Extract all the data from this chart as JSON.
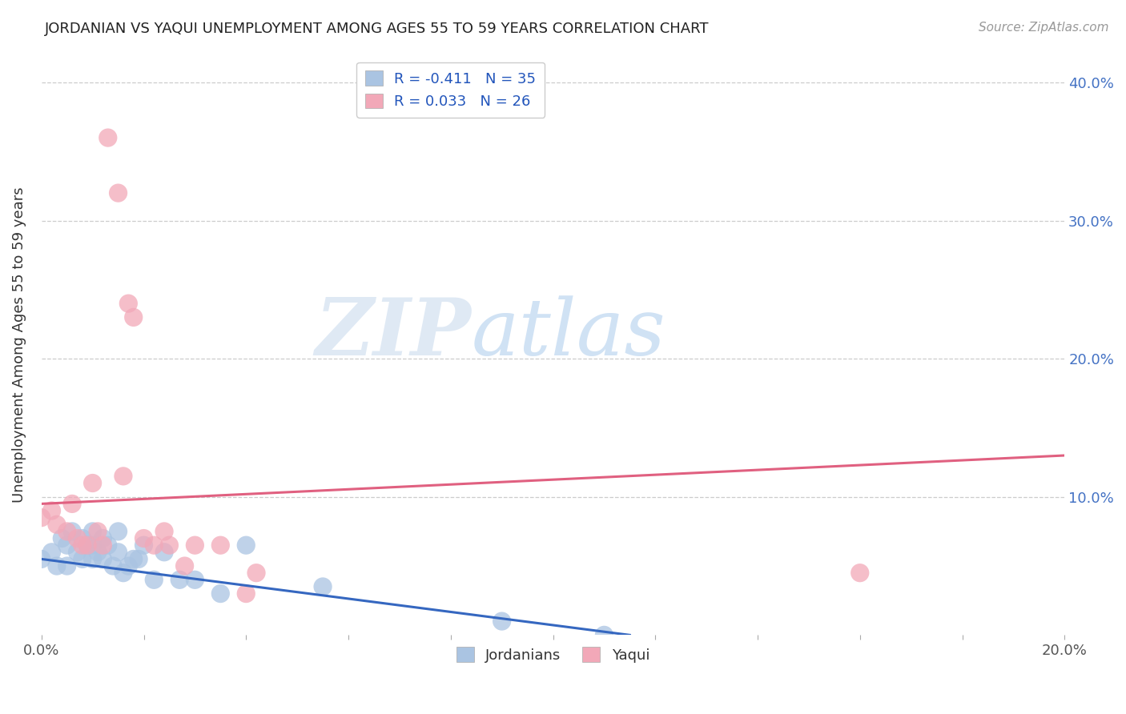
{
  "title": "JORDANIAN VS YAQUI UNEMPLOYMENT AMONG AGES 55 TO 59 YEARS CORRELATION CHART",
  "source": "Source: ZipAtlas.com",
  "ylabel": "Unemployment Among Ages 55 to 59 years",
  "xlim": [
    0.0,
    0.2
  ],
  "ylim": [
    0.0,
    0.42
  ],
  "blue_color": "#aac4e2",
  "pink_color": "#f2a8b8",
  "blue_line_color": "#3567c0",
  "pink_line_color": "#e06080",
  "legend_blue_label": "R = -0.411   N = 35",
  "legend_pink_label": "R = 0.033   N = 26",
  "legend_jordanians": "Jordanians",
  "legend_yaqui": "Yaqui",
  "jordanian_x": [
    0.0,
    0.002,
    0.003,
    0.004,
    0.005,
    0.005,
    0.006,
    0.007,
    0.008,
    0.008,
    0.009,
    0.01,
    0.01,
    0.01,
    0.011,
    0.012,
    0.012,
    0.013,
    0.014,
    0.015,
    0.015,
    0.016,
    0.017,
    0.018,
    0.019,
    0.02,
    0.022,
    0.024,
    0.027,
    0.03,
    0.035,
    0.04,
    0.055,
    0.09,
    0.11
  ],
  "jordanian_y": [
    0.055,
    0.06,
    0.05,
    0.07,
    0.065,
    0.05,
    0.075,
    0.06,
    0.07,
    0.055,
    0.065,
    0.075,
    0.065,
    0.055,
    0.06,
    0.07,
    0.055,
    0.065,
    0.05,
    0.075,
    0.06,
    0.045,
    0.05,
    0.055,
    0.055,
    0.065,
    0.04,
    0.06,
    0.04,
    0.04,
    0.03,
    0.065,
    0.035,
    0.01,
    0.0
  ],
  "yaqui_x": [
    0.0,
    0.002,
    0.003,
    0.005,
    0.006,
    0.007,
    0.008,
    0.009,
    0.01,
    0.011,
    0.012,
    0.013,
    0.015,
    0.016,
    0.017,
    0.018,
    0.02,
    0.022,
    0.024,
    0.025,
    0.028,
    0.03,
    0.035,
    0.04,
    0.042,
    0.16
  ],
  "yaqui_y": [
    0.085,
    0.09,
    0.08,
    0.075,
    0.095,
    0.07,
    0.065,
    0.065,
    0.11,
    0.075,
    0.065,
    0.36,
    0.32,
    0.115,
    0.24,
    0.23,
    0.07,
    0.065,
    0.075,
    0.065,
    0.05,
    0.065,
    0.065,
    0.03,
    0.045,
    0.045
  ],
  "blue_line_x": [
    0.0,
    0.115
  ],
  "blue_line_y": [
    0.055,
    0.0
  ],
  "pink_line_x": [
    0.0,
    0.2
  ],
  "pink_line_y": [
    0.095,
    0.13
  ],
  "watermark_zip": "ZIP",
  "watermark_atlas": "atlas",
  "grid_color": "#cccccc",
  "background_color": "#ffffff",
  "right_ytick_color": "#4472c4",
  "title_fontsize": 13,
  "source_fontsize": 11,
  "axis_fontsize": 13
}
